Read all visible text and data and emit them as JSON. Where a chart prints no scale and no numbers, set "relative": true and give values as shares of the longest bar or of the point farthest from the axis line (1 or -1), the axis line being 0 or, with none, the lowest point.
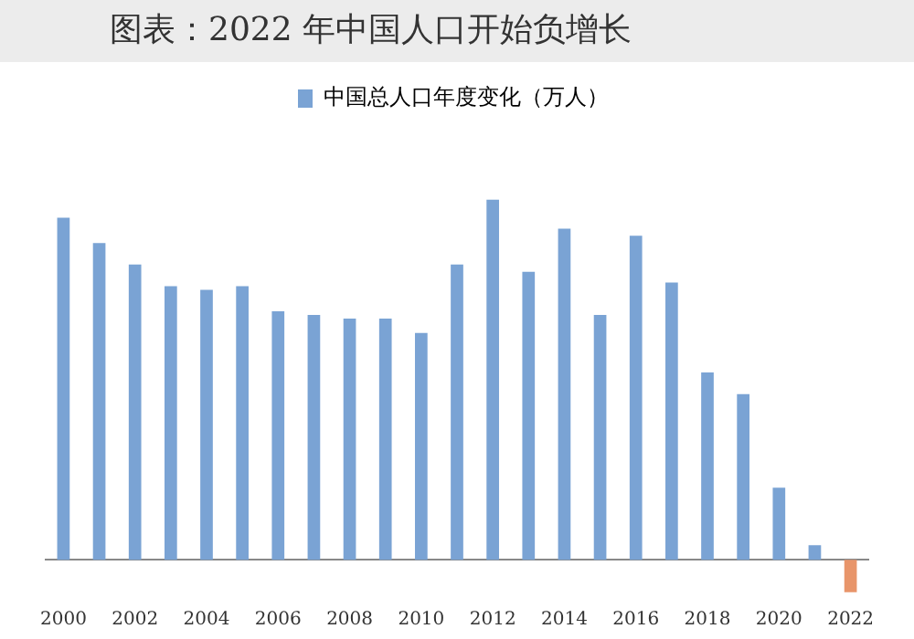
{
  "chart_data": {
    "type": "bar",
    "title": "图表：2022 年中国人口开始负增长",
    "relative": true,
    "legend": "top",
    "grid": false,
    "categories": [
      "2000",
      null,
      "2002",
      null,
      "2004",
      null,
      "2006",
      null,
      "2008",
      null,
      "2010",
      null,
      "2012",
      null,
      "2014",
      null,
      "2016",
      null,
      "2018",
      null,
      "2020",
      null,
      "2022"
    ],
    "series": [
      {
        "name": "中国总人口年度变化（万人）",
        "color": "#7aa3d4",
        "colors": [
          "#7aa3d4",
          "#7aa3d4",
          "#7aa3d4",
          "#7aa3d4",
          "#7aa3d4",
          "#7aa3d4",
          "#7aa3d4",
          "#7aa3d4",
          "#7aa3d4",
          "#7aa3d4",
          "#7aa3d4",
          "#7aa3d4",
          "#7aa3d4",
          "#7aa3d4",
          "#7aa3d4",
          "#7aa3d4",
          "#7aa3d4",
          "#7aa3d4",
          "#7aa3d4",
          "#7aa3d4",
          "#7aa3d4",
          "#7aa3d4",
          "#e8956a"
        ],
        "values": [
          0.95,
          0.88,
          0.82,
          0.76,
          0.75,
          0.76,
          0.69,
          0.68,
          0.67,
          0.67,
          0.63,
          0.82,
          1,
          0.8,
          0.92,
          0.68,
          0.9,
          0.77,
          0.52,
          0.46,
          0.2,
          0.04,
          -0.09
        ]
      }
    ]
  }
}
